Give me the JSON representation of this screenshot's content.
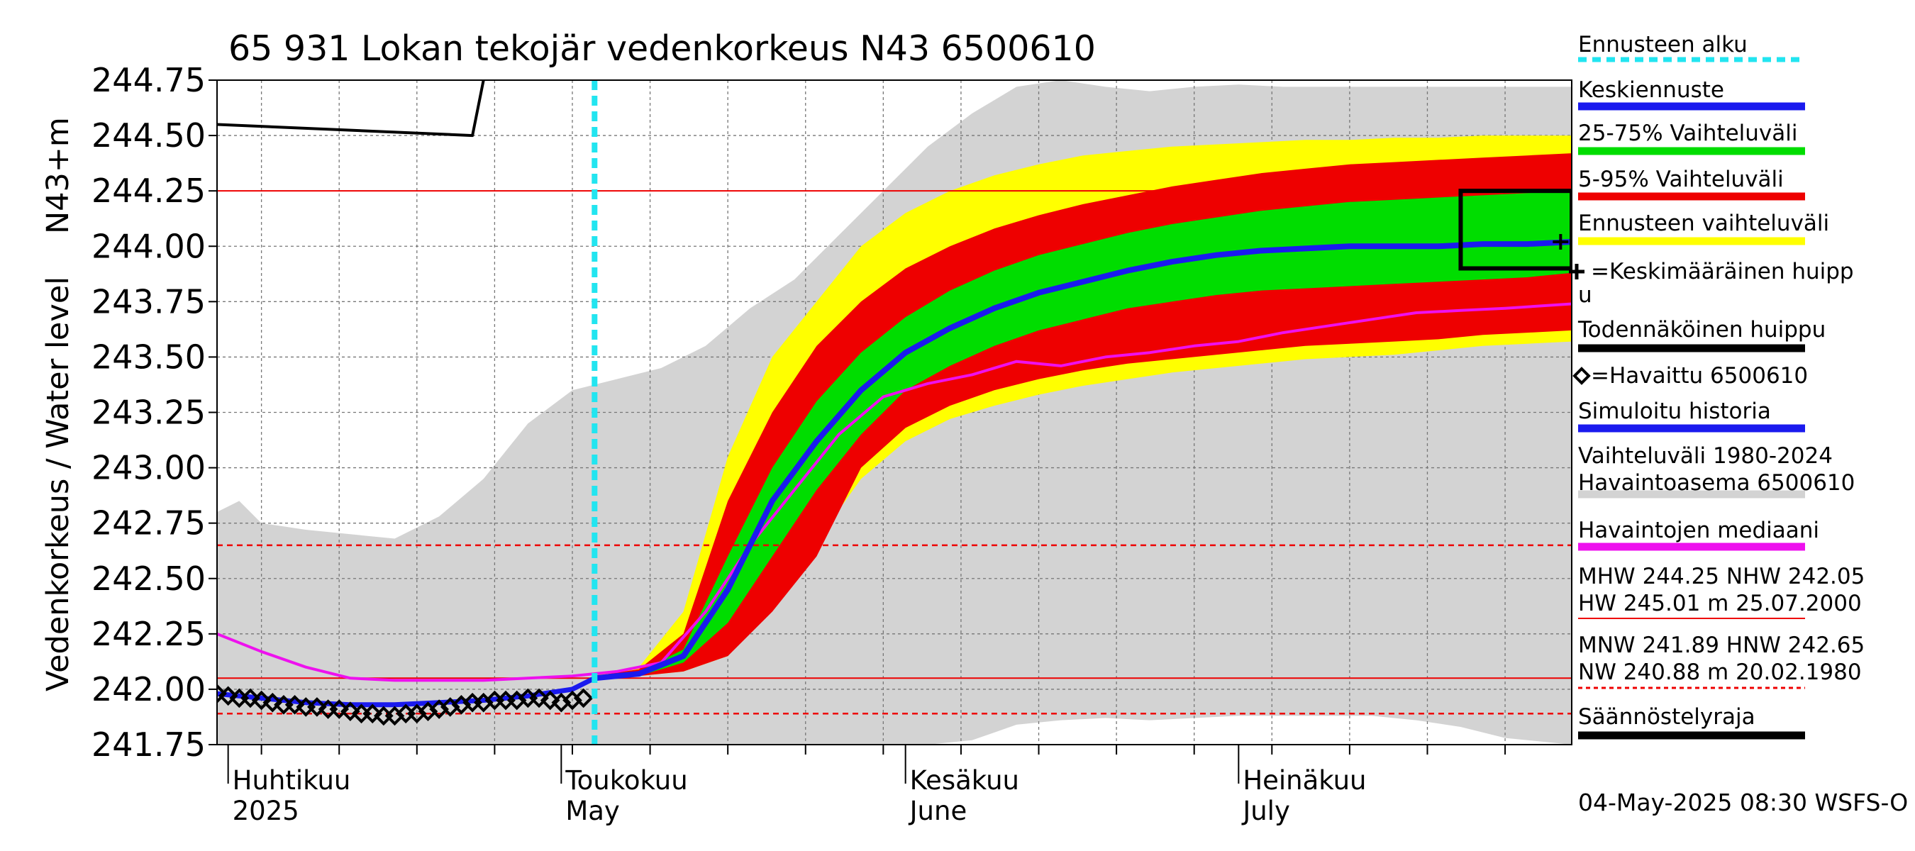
{
  "chart_data": {
    "type": "area",
    "title": "65 931 Lokan tekojär vedenkorkeus N43 6500610",
    "ylabel_main": "Vedenkorkeus / Water level",
    "ylabel_unit": "N43+m",
    "ylim": [
      241.75,
      244.75
    ],
    "yticks": [
      "241.75",
      "242.00",
      "242.25",
      "242.50",
      "242.75",
      "243.00",
      "243.25",
      "243.50",
      "243.75",
      "244.00",
      "244.25",
      "244.50",
      "244.75"
    ],
    "x_start": "2025-03-31",
    "x_end": "2025-07-31",
    "forecast_start": "2025-05-04",
    "month_labels": [
      {
        "fi": "Huhtikuu",
        "en": "2025",
        "date": "2025-04-01"
      },
      {
        "fi": "Toukokuu",
        "en": "May",
        "date": "2025-05-01"
      },
      {
        "fi": "Kesäkuu",
        "en": "June",
        "date": "2025-06-01"
      },
      {
        "fi": "Heinäkuu",
        "en": "July",
        "date": "2025-07-01"
      }
    ],
    "reference_lines": {
      "solid": [
        244.25,
        242.05
      ],
      "dashed": [
        242.65,
        241.89
      ]
    },
    "history_range": {
      "x": [
        "2025-03-31",
        "2025-04-02",
        "2025-04-04",
        "2025-04-08",
        "2025-04-12",
        "2025-04-16",
        "2025-04-20",
        "2025-04-24",
        "2025-04-28",
        "2025-05-02",
        "2025-05-06",
        "2025-05-10",
        "2025-05-14",
        "2025-05-18",
        "2025-05-22",
        "2025-05-26",
        "2025-05-30",
        "2025-06-03",
        "2025-06-07",
        "2025-06-11",
        "2025-06-15",
        "2025-06-19",
        "2025-06-23",
        "2025-06-27",
        "2025-07-01",
        "2025-07-05",
        "2025-07-09",
        "2025-07-13",
        "2025-07-17",
        "2025-07-21",
        "2025-07-25",
        "2025-07-31"
      ],
      "upper": [
        242.8,
        242.85,
        242.75,
        242.72,
        242.7,
        242.68,
        242.78,
        242.95,
        243.2,
        243.35,
        243.4,
        243.45,
        243.55,
        243.72,
        243.85,
        244.05,
        244.25,
        244.45,
        244.6,
        244.72,
        244.75,
        244.72,
        244.7,
        244.72,
        244.73,
        244.72,
        244.72,
        244.72,
        244.72,
        244.72,
        244.72,
        244.72
      ],
      "lower": [
        241.75,
        241.75,
        241.75,
        241.75,
        241.75,
        241.75,
        241.75,
        241.75,
        241.75,
        241.75,
        241.75,
        241.75,
        241.75,
        241.75,
        241.75,
        241.75,
        241.75,
        241.75,
        241.77,
        241.84,
        241.86,
        241.87,
        241.86,
        241.87,
        241.88,
        241.88,
        241.88,
        241.88,
        241.86,
        241.83,
        241.78,
        241.75
      ]
    },
    "forecast_bands": {
      "x": [
        "2025-05-04",
        "2025-05-08",
        "2025-05-12",
        "2025-05-16",
        "2025-05-20",
        "2025-05-24",
        "2025-05-28",
        "2025-06-01",
        "2025-06-05",
        "2025-06-09",
        "2025-06-13",
        "2025-06-17",
        "2025-06-21",
        "2025-06-25",
        "2025-06-29",
        "2025-07-03",
        "2025-07-07",
        "2025-07-11",
        "2025-07-15",
        "2025-07-19",
        "2025-07-23",
        "2025-07-27",
        "2025-07-31"
      ],
      "max": [
        242.07,
        242.1,
        242.35,
        243.05,
        243.5,
        243.75,
        244.0,
        244.15,
        244.25,
        244.32,
        244.37,
        244.41,
        244.43,
        244.45,
        244.46,
        244.47,
        244.48,
        244.48,
        244.49,
        244.49,
        244.5,
        244.5,
        244.5
      ],
      "p95": [
        242.06,
        242.09,
        242.25,
        242.85,
        243.25,
        243.55,
        243.75,
        243.9,
        244.0,
        244.08,
        244.14,
        244.19,
        244.23,
        244.27,
        244.3,
        244.33,
        244.35,
        244.37,
        244.38,
        244.39,
        244.4,
        244.41,
        244.42
      ],
      "p75": [
        242.06,
        242.08,
        242.18,
        242.6,
        243.0,
        243.3,
        243.52,
        243.68,
        243.8,
        243.89,
        243.96,
        244.01,
        244.06,
        244.1,
        244.13,
        244.16,
        244.18,
        244.2,
        244.21,
        244.22,
        244.23,
        244.24,
        244.25
      ],
      "mean": [
        242.05,
        242.07,
        242.15,
        242.45,
        242.85,
        243.12,
        243.35,
        243.52,
        243.63,
        243.72,
        243.79,
        243.84,
        243.89,
        243.93,
        243.96,
        243.98,
        243.99,
        244.0,
        244.0,
        244.0,
        244.01,
        244.01,
        244.02
      ],
      "p25": [
        242.05,
        242.06,
        242.12,
        242.3,
        242.6,
        242.9,
        243.15,
        243.35,
        243.46,
        243.55,
        243.62,
        243.67,
        243.72,
        243.75,
        243.78,
        243.8,
        243.81,
        243.82,
        243.83,
        243.84,
        243.85,
        243.86,
        243.88
      ],
      "p05": [
        242.05,
        242.06,
        242.08,
        242.15,
        242.35,
        242.6,
        243.0,
        243.18,
        243.28,
        243.35,
        243.4,
        243.44,
        243.47,
        243.49,
        243.51,
        243.53,
        243.55,
        243.56,
        243.57,
        243.58,
        243.6,
        243.61,
        243.62
      ],
      "min": [
        242.05,
        242.06,
        242.08,
        242.15,
        242.38,
        242.67,
        242.95,
        243.12,
        243.22,
        243.28,
        243.33,
        243.37,
        243.4,
        243.43,
        243.45,
        243.47,
        243.49,
        243.5,
        243.51,
        243.53,
        243.55,
        243.56,
        243.57
      ]
    },
    "median_history": {
      "x": [
        "2025-03-31",
        "2025-04-04",
        "2025-04-08",
        "2025-04-12",
        "2025-04-16",
        "2025-04-20",
        "2025-04-24",
        "2025-04-28",
        "2025-05-02",
        "2025-05-06",
        "2025-05-10",
        "2025-05-14",
        "2025-05-18",
        "2025-05-22",
        "2025-05-26",
        "2025-05-30",
        "2025-06-03",
        "2025-06-07",
        "2025-06-11",
        "2025-06-15",
        "2025-06-19",
        "2025-06-23",
        "2025-06-27",
        "2025-07-01",
        "2025-07-05",
        "2025-07-09",
        "2025-07-13",
        "2025-07-17",
        "2025-07-21",
        "2025-07-25",
        "2025-07-31"
      ],
      "values": [
        242.25,
        242.17,
        242.1,
        242.05,
        242.04,
        242.04,
        242.04,
        242.05,
        242.06,
        242.08,
        242.12,
        242.35,
        242.65,
        242.9,
        243.15,
        243.32,
        243.38,
        243.42,
        243.48,
        243.46,
        243.5,
        243.52,
        243.55,
        243.57,
        243.61,
        243.64,
        243.67,
        243.7,
        243.71,
        243.72,
        243.74
      ]
    },
    "simulated_history": {
      "x": [
        "2025-03-31",
        "2025-04-04",
        "2025-04-08",
        "2025-04-12",
        "2025-04-16",
        "2025-04-20",
        "2025-04-24",
        "2025-04-28",
        "2025-05-02",
        "2025-05-04"
      ],
      "values": [
        241.98,
        241.96,
        241.94,
        241.93,
        241.93,
        241.94,
        241.95,
        241.97,
        242.0,
        242.05
      ]
    },
    "observations": {
      "x": [
        "2025-03-31",
        "2025-04-01",
        "2025-04-02",
        "2025-04-03",
        "2025-04-04",
        "2025-04-05",
        "2025-04-06",
        "2025-04-07",
        "2025-04-08",
        "2025-04-09",
        "2025-04-10",
        "2025-04-11",
        "2025-04-12",
        "2025-04-13",
        "2025-04-14",
        "2025-04-15",
        "2025-04-16",
        "2025-04-17",
        "2025-04-18",
        "2025-04-19",
        "2025-04-20",
        "2025-04-21",
        "2025-04-22",
        "2025-04-23",
        "2025-04-24",
        "2025-04-25",
        "2025-04-26",
        "2025-04-27",
        "2025-04-28",
        "2025-04-29",
        "2025-04-30",
        "2025-05-01",
        "2025-05-02",
        "2025-05-03"
      ],
      "values": [
        241.98,
        241.97,
        241.96,
        241.96,
        241.95,
        241.94,
        241.93,
        241.93,
        241.92,
        241.92,
        241.91,
        241.91,
        241.9,
        241.89,
        241.89,
        241.88,
        241.88,
        241.89,
        241.89,
        241.9,
        241.91,
        241.92,
        241.93,
        241.94,
        241.94,
        241.95,
        241.95,
        241.95,
        241.96,
        241.96,
        241.95,
        241.94,
        241.95,
        241.96
      ]
    },
    "peak_box": {
      "x_start": "2025-07-21",
      "x_end": "2025-07-31",
      "y_low": 243.9,
      "y_high": 244.25
    },
    "mean_peak": {
      "x": "2025-07-30",
      "y": 244.02
    },
    "top_left_line": {
      "x": [
        "2025-03-31",
        "2025-04-23",
        "2025-04-24"
      ],
      "y": [
        244.55,
        244.5,
        244.75
      ]
    },
    "legend": [
      {
        "label": "Ennusteen alku",
        "style": "dash",
        "color": "#22e5f0"
      },
      {
        "label": "Keskiennuste",
        "style": "line",
        "color": "#1a1aee"
      },
      {
        "label": "25-75% Vaihteluväli",
        "style": "line",
        "color": "#00dd00"
      },
      {
        "label": "5-95% Vaihteluväli",
        "style": "line",
        "color": "#ee0000"
      },
      {
        "label": "Ennusteen vaihteluväli",
        "style": "line",
        "color": "#ffff00"
      },
      {
        "label": "=Keskimääräinen huipp",
        "label2": "u",
        "style": "plus",
        "color": "#000000"
      },
      {
        "label": "Todennäköinen huippu",
        "style": "line",
        "color": "#000000"
      },
      {
        "label": "=Havaittu 6500610",
        "style": "diamond",
        "color": "#000000"
      },
      {
        "label": "Simuloitu historia",
        "style": "line",
        "color": "#1a1aee"
      },
      {
        "label": "Vaihteluväli 1980-2024",
        "label2": " Havaintoasema 6500610",
        "style": "line",
        "color": "#d3d3d3"
      },
      {
        "label": "Havaintojen mediaani",
        "style": "line",
        "color": "#ee11ee"
      },
      {
        "label": "MHW 244.25 NHW 242.05",
        "label2": "HW 245.01 m 25.07.2000",
        "style": "thin",
        "color": "#ee0000"
      },
      {
        "label": "MNW 241.89 HNW 242.65",
        "label2": "NW 240.88 m 20.02.1980",
        "style": "thindash",
        "color": "#ee0000"
      },
      {
        "label": "Säännöstelyraja",
        "style": "line",
        "color": "#000000"
      }
    ],
    "footer": "04-May-2025 08:30 WSFS-O",
    "colors": {
      "history": "#d3d3d3",
      "yellow": "#ffff00",
      "red": "#ee0000",
      "green": "#00dd00",
      "mean": "#1a1aee",
      "median": "#ee11ee",
      "forecast_start": "#22e5f0"
    }
  }
}
